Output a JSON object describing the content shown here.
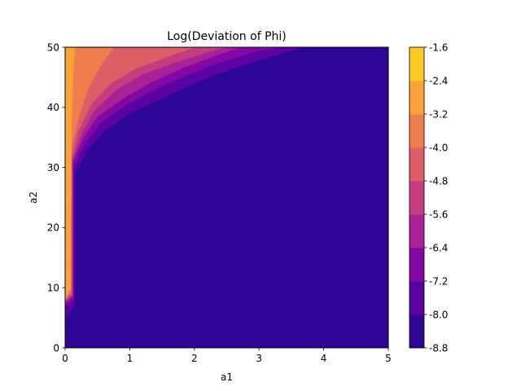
{
  "chart_data": {
    "type": "heatmap",
    "title": "Log(Deviation of Phi)",
    "xlabel": "a1",
    "ylabel": "a2",
    "xlim": [
      0,
      5
    ],
    "ylim": [
      0,
      50
    ],
    "xticks": [
      "0",
      "1",
      "2",
      "3",
      "4",
      "5"
    ],
    "yticks": [
      "0",
      "10",
      "20",
      "30",
      "40",
      "50"
    ],
    "colormap": "plasma",
    "colorbar": {
      "levels": [
        "-1.6",
        "-2.4",
        "-3.2",
        "-4.0",
        "-4.8",
        "-5.6",
        "-6.4",
        "-7.2",
        "-8.0",
        "-8.8"
      ],
      "colors": [
        "#2f0596",
        "#5b02a3",
        "#8508a5",
        "#a72197",
        "#c43e7f",
        "#dc5e66",
        "#ef7e4f",
        "#fba238",
        "#fdca26"
      ]
    },
    "contour_boundaries": [
      {
        "upper": "-8.0",
        "points": [
          [
            0,
            5
          ],
          [
            0.15,
            7
          ],
          [
            0.15,
            29
          ],
          [
            0.35,
            33
          ],
          [
            0.6,
            36
          ],
          [
            1.0,
            39
          ],
          [
            1.5,
            41.5
          ],
          [
            2.0,
            44
          ],
          [
            2.6,
            46.5
          ],
          [
            3.2,
            48.5
          ],
          [
            3.7,
            50
          ]
        ]
      },
      {
        "upper": "-7.2",
        "points": [
          [
            0,
            7
          ],
          [
            0.13,
            8
          ],
          [
            0.13,
            30
          ],
          [
            0.3,
            34
          ],
          [
            0.55,
            37.5
          ],
          [
            0.95,
            40.5
          ],
          [
            1.4,
            43
          ],
          [
            1.9,
            45.5
          ],
          [
            2.4,
            47.5
          ],
          [
            3.0,
            49.5
          ],
          [
            3.3,
            50
          ]
        ]
      },
      {
        "upper": "-6.4",
        "points": [
          [
            0,
            7.5
          ],
          [
            0.12,
            8.5
          ],
          [
            0.12,
            31
          ],
          [
            0.28,
            35
          ],
          [
            0.5,
            38.5
          ],
          [
            0.9,
            41.5
          ],
          [
            1.3,
            44
          ],
          [
            1.8,
            46.5
          ],
          [
            2.3,
            48.5
          ],
          [
            2.7,
            50
          ]
        ]
      },
      {
        "upper": "-5.6",
        "points": [
          [
            0,
            7.7
          ],
          [
            0.11,
            8.8
          ],
          [
            0.11,
            31.2
          ],
          [
            0.25,
            35.5
          ],
          [
            0.45,
            39.5
          ],
          [
            0.8,
            43
          ],
          [
            1.2,
            45.5
          ],
          [
            1.7,
            47.5
          ],
          [
            2.3,
            49.5
          ],
          [
            2.5,
            50
          ]
        ]
      },
      {
        "upper": "-4.8",
        "points": [
          [
            0,
            7.9
          ],
          [
            0.1,
            9
          ],
          [
            0.1,
            31.5
          ],
          [
            0.2,
            36
          ],
          [
            0.4,
            40.5
          ],
          [
            0.7,
            44
          ],
          [
            1.1,
            46.5
          ],
          [
            1.6,
            48.5
          ],
          [
            2.0,
            50
          ]
        ]
      },
      {
        "upper": "-4.0",
        "points": [
          [
            0,
            8
          ],
          [
            0.09,
            9.5
          ],
          [
            0.09,
            33
          ],
          [
            0.2,
            38
          ],
          [
            0.35,
            43
          ],
          [
            0.55,
            47
          ],
          [
            0.75,
            50
          ]
        ]
      },
      {
        "upper": "-3.2",
        "points": [
          [
            0,
            8.2
          ],
          [
            0.08,
            10
          ],
          [
            0.1,
            38
          ],
          [
            0.12,
            45
          ],
          [
            0.15,
            50
          ]
        ]
      }
    ]
  }
}
